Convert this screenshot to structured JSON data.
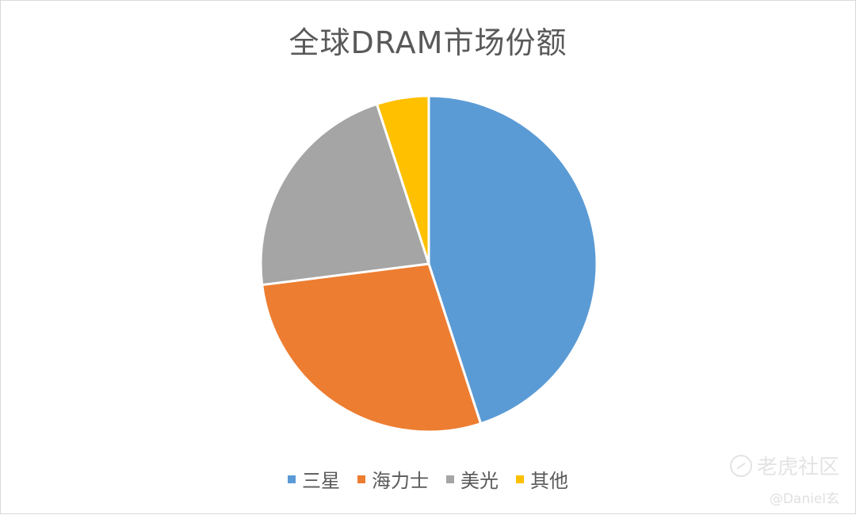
{
  "chart_data": {
    "type": "pie",
    "title": "全球DRAM市场份额",
    "categories": [
      "三星",
      "海力士",
      "美光",
      "其他"
    ],
    "values": [
      45,
      28,
      22,
      5
    ],
    "unit": "%",
    "colors": [
      "#5b9bd5",
      "#ed7d31",
      "#a5a5a5",
      "#ffc000"
    ],
    "start_angle_deg": 0,
    "direction": "clockwise",
    "legend_position": "bottom"
  },
  "watermark": {
    "brand": "老虎社区",
    "user": "@Daniel玄"
  }
}
